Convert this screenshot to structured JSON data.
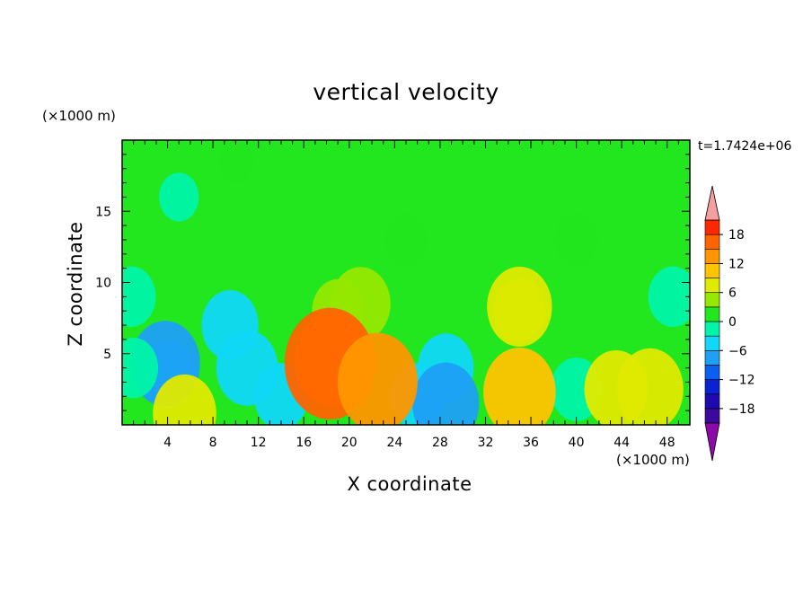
{
  "chart_data": {
    "type": "heatmap",
    "title": "vertical velocity",
    "xlabel": "X coordinate",
    "ylabel": "Z coordinate",
    "x_unit": "(×1000 m)",
    "y_unit": "(×1000 m)",
    "timestamp": "t=1.7424e+06",
    "x_range": [
      0,
      50
    ],
    "y_range": [
      0,
      20
    ],
    "x_ticks": [
      4,
      8,
      12,
      16,
      20,
      24,
      28,
      32,
      36,
      40,
      44,
      48
    ],
    "y_ticks": [
      5,
      10,
      15
    ],
    "colorbar": {
      "tick_labels": [
        "18",
        "12",
        "6",
        "0",
        "−6",
        "−12",
        "−18"
      ],
      "tick_values": [
        18,
        12,
        6,
        0,
        -6,
        -12,
        -18
      ],
      "range": [
        -21,
        21
      ],
      "levels": [
        -21,
        -18,
        -15,
        -12,
        -9,
        -6,
        -3,
        0,
        3,
        6,
        9,
        12,
        15,
        18,
        21
      ],
      "colors": [
        "#3b0a9c",
        "#1f0ab0",
        "#0a22d4",
        "#0a5ef0",
        "#1ea0f5",
        "#10d8f8",
        "#00f5a8",
        "#22e61e",
        "#95e800",
        "#e0ea00",
        "#ffc400",
        "#ff9600",
        "#ff6400",
        "#ff2800"
      ],
      "over_color": "#f5a0a0",
      "under_color": "#8c0aa8"
    },
    "background_value": 0,
    "features": [
      {
        "x": 5,
        "z": 16,
        "w": -1
      },
      {
        "x": 10,
        "z": 18.5,
        "w": 0.5
      },
      {
        "x": 9.5,
        "z": 7,
        "w": -4.2
      },
      {
        "x": 11,
        "z": 4,
        "w": -5.5
      },
      {
        "x": 4,
        "z": 3.5,
        "w": -3.5
      },
      {
        "x": 3.8,
        "z": 4.3,
        "w": -8
      },
      {
        "x": 1,
        "z": 4,
        "w": -2.5
      },
      {
        "x": 0.8,
        "z": 9,
        "w": -2.5
      },
      {
        "x": 5.5,
        "z": 0.8,
        "w": 6
      },
      {
        "x": 14,
        "z": 2,
        "w": -3.5
      },
      {
        "x": 28.5,
        "z": 4,
        "w": -4
      },
      {
        "x": 26,
        "z": 2,
        "w": -3.5
      },
      {
        "x": 28.5,
        "z": 1.5,
        "w": -7
      },
      {
        "x": 48.5,
        "z": 9,
        "w": -2.5
      },
      {
        "x": 40,
        "z": 2.5,
        "w": -3
      },
      {
        "x": 25,
        "z": 13,
        "w": 1.5
      },
      {
        "x": 40,
        "z": 13,
        "w": 1.5
      },
      {
        "x": 19,
        "z": 8,
        "w": 3
      },
      {
        "x": 35,
        "z": 8,
        "w": 3
      },
      {
        "x": 21,
        "z": 8.5,
        "w": 5
      },
      {
        "x": 35,
        "z": 8.3,
        "w": 6.5
      },
      {
        "x": 18.5,
        "z": 4.5,
        "w": 10
      },
      {
        "x": 18.3,
        "z": 4.3,
        "w": 17
      },
      {
        "x": 22.5,
        "z": 3,
        "w": 12
      },
      {
        "x": 35,
        "z": 2.3,
        "w": 9
      },
      {
        "x": 43.5,
        "z": 2.5,
        "w": 6
      },
      {
        "x": 46.5,
        "z": 2.5,
        "w": 7
      }
    ]
  }
}
